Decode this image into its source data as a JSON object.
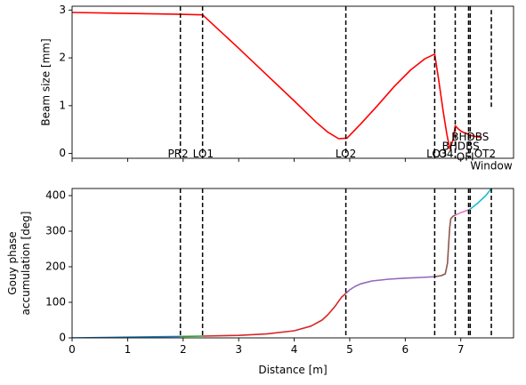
{
  "chart_data": [
    {
      "type": "line",
      "ylabel": "Beam size [mm]",
      "xlim": [
        0,
        7.95
      ],
      "ylim": [
        -0.1,
        3.08
      ],
      "yticks": [
        0,
        1,
        2,
        3
      ],
      "x_tick_labels_shown": false,
      "series": [
        {
          "color": "#ff0000",
          "x": [
            0,
            1.95,
            2.35,
            3.0,
            3.5,
            4.0,
            4.4,
            4.6,
            4.8,
            4.95,
            5.2,
            5.5,
            5.8,
            6.1,
            6.35,
            6.53,
            6.6,
            6.68,
            6.75,
            6.8,
            6.86,
            6.9,
            6.95,
            7.0,
            7.05,
            7.1,
            7.15,
            7.2,
            7.25,
            7.3,
            7.38
          ],
          "y": [
            2.95,
            2.91,
            2.9,
            2.2,
            1.65,
            1.1,
            0.65,
            0.45,
            0.31,
            0.32,
            0.62,
            1.0,
            1.4,
            1.75,
            1.98,
            2.08,
            1.55,
            0.9,
            0.4,
            0.1,
            0.28,
            0.58,
            0.52,
            0.47,
            0.44,
            0.42,
            0.39,
            0.37,
            0.36,
            0.35,
            0.34
          ]
        }
      ],
      "vlines": [
        {
          "x": 1.95,
          "label": ""
        },
        {
          "x": 2.35,
          "label": ""
        },
        {
          "x": 4.93,
          "label": "LO2"
        },
        {
          "x": 6.53,
          "label": ""
        },
        {
          "x": 6.9,
          "label": ""
        },
        {
          "x": 7.14,
          "label": ""
        },
        {
          "x": 7.17,
          "label": ""
        },
        {
          "x": 7.55,
          "label": ""
        }
      ],
      "annotations": [
        {
          "text": "PR2",
          "x": 1.95,
          "y": 0.0
        },
        {
          "text": "LO1",
          "x": 2.35,
          "y": 0.0
        },
        {
          "text": "LO3",
          "x": 6.53,
          "y": 0.0
        },
        {
          "text": "LO4",
          "x": 6.9,
          "y": 0.0
        },
        {
          "text": "BHDBS",
          "x": 7.0,
          "y": 0.16
        },
        {
          "text": "BHDBS",
          "x": 7.17,
          "y": 0.36
        },
        {
          "text": "OFI",
          "x": 7.08,
          "y": -0.06
        },
        {
          "text": "OT2",
          "x": 7.6,
          "y": 0.0
        },
        {
          "text": "Window",
          "x": 7.55,
          "y": -0.25
        }
      ]
    },
    {
      "type": "line",
      "xlabel": "Distance [m]",
      "ylabel": "Gouy phase\naccumulation [deg]",
      "xlim": [
        0,
        7.95
      ],
      "ylim": [
        0,
        420
      ],
      "xticks": [
        0,
        1,
        2,
        3,
        4,
        5,
        6,
        7
      ],
      "yticks": [
        0,
        100,
        200,
        300,
        400
      ],
      "series": [
        {
          "color": "#1f77b4",
          "x": [
            0,
            1.0,
            1.95
          ],
          "y": [
            0,
            2.0,
            4.0
          ]
        },
        {
          "color": "#2ca02c",
          "x": [
            1.95,
            2.35
          ],
          "y": [
            4.0,
            5.0
          ]
        },
        {
          "color": "#d62728",
          "x": [
            2.35,
            3.0,
            3.5,
            4.0,
            4.3,
            4.5,
            4.6,
            4.7,
            4.75,
            4.8,
            4.85,
            4.93
          ],
          "y": [
            5.0,
            7.0,
            11.0,
            20.0,
            33.0,
            50.0,
            64.0,
            82.0,
            92.0,
            103.0,
            114.0,
            125.0
          ]
        },
        {
          "color": "#9467bd",
          "x": [
            4.93,
            5.0,
            5.1,
            5.2,
            5.4,
            5.7,
            6.0,
            6.3,
            6.53
          ],
          "y": [
            125.0,
            135.0,
            145.0,
            152.0,
            160.0,
            165.0,
            168.0,
            170.0,
            172.0
          ]
        },
        {
          "color": "#8c564b",
          "x": [
            6.53,
            6.65,
            6.72,
            6.76,
            6.78,
            6.8,
            6.82,
            6.86,
            6.9
          ],
          "y": [
            172.0,
            175.0,
            180.0,
            210.0,
            260.0,
            310.0,
            335.0,
            342.0,
            345.0
          ]
        },
        {
          "color": "#e377c2",
          "x": [
            6.9,
            7.0,
            7.14
          ],
          "y": [
            345.0,
            352.0,
            360.0
          ]
        },
        {
          "color": "#7f7f7f",
          "x": [
            7.14,
            7.17
          ],
          "y": [
            360.0,
            362.0
          ]
        },
        {
          "color": "#17becf",
          "x": [
            7.17,
            7.3,
            7.45,
            7.55
          ],
          "y": [
            362.0,
            378.0,
            400.0,
            420.0
          ]
        }
      ],
      "vlines": [
        {
          "x": 1.95
        },
        {
          "x": 2.35
        },
        {
          "x": 4.93
        },
        {
          "x": 6.53
        },
        {
          "x": 6.9
        },
        {
          "x": 7.14
        },
        {
          "x": 7.17
        },
        {
          "x": 7.55
        }
      ]
    }
  ]
}
